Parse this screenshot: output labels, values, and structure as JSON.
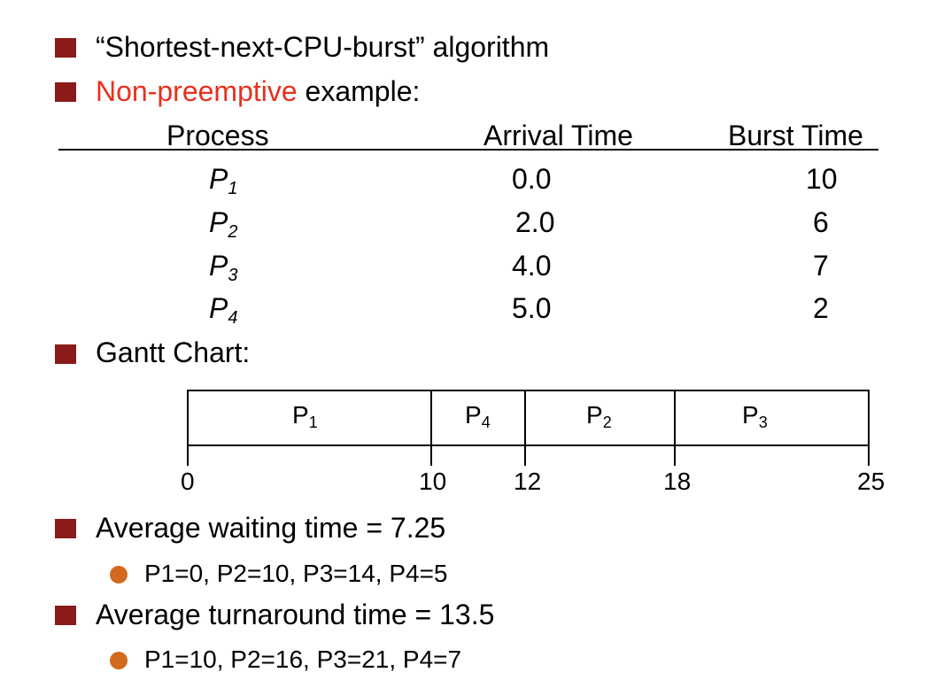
{
  "bullets": {
    "algorithm": "“Shortest-next-CPU-burst” algorithm",
    "nonpreemptive": "Non-preemptive",
    "example_suffix": " example:",
    "gantt_heading": "Gantt Chart:",
    "avg_wait": "Average waiting time = 7.25",
    "avg_wait_detail": "P1=0, P2=10, P3=14, P4=5",
    "avg_turn": "Average turnaround time = 13.5",
    "avg_turn_detail": "P1=10, P2=16, P3=21, P4=7"
  },
  "table": {
    "headers": [
      "Process",
      "Arrival Time",
      "Burst Time"
    ],
    "rows": [
      {
        "p": "P",
        "sub": "1",
        "arrival": "0.0",
        "burst": "10"
      },
      {
        "p": "P",
        "sub": "2",
        "arrival": "2.0",
        "burst": "6"
      },
      {
        "p": "P",
        "sub": "3",
        "arrival": "4.0",
        "burst": "7"
      },
      {
        "p": "P",
        "sub": "4",
        "arrival": "5.0",
        "burst": "2"
      }
    ]
  },
  "gantt": {
    "segments": [
      {
        "p": "P",
        "sub": "1",
        "start": 0,
        "end": 10
      },
      {
        "p": "P",
        "sub": "4",
        "start": 10,
        "end": 12
      },
      {
        "p": "P",
        "sub": "2",
        "start": 12,
        "end": 18
      },
      {
        "p": "P",
        "sub": "3",
        "start": 18,
        "end": 25
      }
    ],
    "ticks": [
      "0",
      "10",
      "12",
      "18",
      "25"
    ]
  },
  "colors": {
    "bullet": "#8B1A1A",
    "highlight": "#E8301E",
    "subbullet": "#D2691E"
  }
}
